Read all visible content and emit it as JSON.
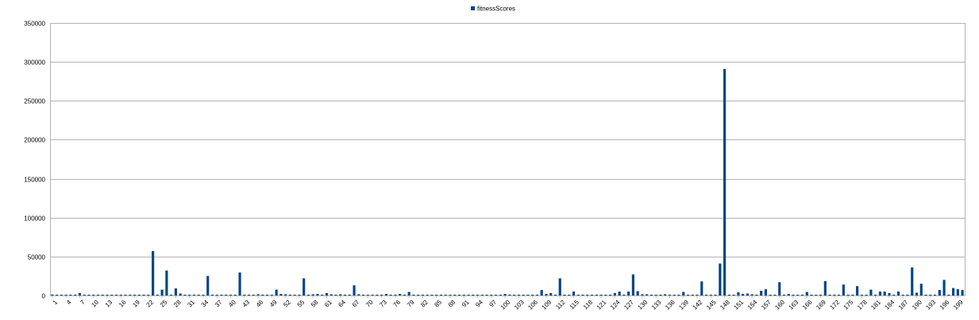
{
  "chart_data": {
    "type": "bar",
    "title": "",
    "xlabel": "",
    "ylabel": "",
    "legend": {
      "position": "top-center",
      "entries": [
        "fitnessScores"
      ]
    },
    "grid": true,
    "ylim": [
      0,
      350000
    ],
    "y_ticks": [
      "0",
      "50000",
      "100000",
      "150000",
      "200000",
      "250000",
      "300000",
      "350000"
    ],
    "x_ticks": [
      "1",
      "4",
      "7",
      "10",
      "13",
      "16",
      "19",
      "22",
      "25",
      "28",
      "31",
      "34",
      "37",
      "40",
      "43",
      "46",
      "49",
      "52",
      "55",
      "58",
      "61",
      "64",
      "67",
      "70",
      "73",
      "76",
      "79",
      "82",
      "85",
      "88",
      "91",
      "94",
      "97",
      "100",
      "103",
      "106",
      "109",
      "112",
      "115",
      "118",
      "121",
      "124",
      "127",
      "130",
      "133",
      "136",
      "139",
      "142",
      "145",
      "148",
      "151",
      "154",
      "157",
      "160",
      "163",
      "166",
      "169",
      "172",
      "175",
      "178",
      "181",
      "184",
      "187",
      "190",
      "193",
      "196",
      "199"
    ],
    "categories_count": 200,
    "series": [
      {
        "name": "fitnessScores",
        "color": "#004586",
        "values": [
          1200,
          1000,
          1000,
          1000,
          1000,
          1000,
          3000,
          1000,
          1000,
          1000,
          1000,
          1000,
          1000,
          1000,
          1000,
          1000,
          1000,
          1000,
          1000,
          1000,
          1000,
          1000,
          57000,
          1000,
          7500,
          32000,
          1000,
          9000,
          2500,
          1000,
          1000,
          1000,
          1000,
          1000,
          25000,
          1000,
          1000,
          1000,
          1000,
          1000,
          1000,
          29500,
          1000,
          1000,
          1000,
          1500,
          1000,
          1000,
          1000,
          7500,
          2000,
          1500,
          1000,
          1000,
          1000,
          22000,
          1000,
          1500,
          2000,
          1000,
          3000,
          1500,
          1000,
          1500,
          1000,
          1000,
          13000,
          1500,
          1000,
          1000,
          1000,
          1000,
          1000,
          2000,
          1000,
          1000,
          2000,
          1000,
          4500,
          1000,
          1000,
          1000,
          1000,
          1000,
          1000,
          1000,
          1000,
          1000,
          1000,
          1000,
          1000,
          1000,
          1000,
          1000,
          1000,
          1000,
          1000,
          1000,
          1000,
          2000,
          1000,
          1000,
          1000,
          1000,
          1000,
          1000,
          1000,
          7000,
          2000,
          3000,
          1000,
          22000,
          1000,
          1000,
          5000,
          1000,
          1000,
          1000,
          1000,
          1000,
          1000,
          1000,
          1000,
          3000,
          5000,
          1000,
          5000,
          27000,
          5500,
          1500,
          1500,
          1000,
          1000,
          1000,
          1500,
          1000,
          1000,
          1000,
          4500,
          1000,
          1000,
          1000,
          18000,
          1000,
          1000,
          1000,
          41000,
          291000,
          1000,
          1000,
          4000,
          2000,
          2500,
          1500,
          1000,
          6000,
          8000,
          1000,
          1000,
          17000,
          1000,
          2000,
          1000,
          1000,
          1000,
          4500,
          1000,
          1000,
          1000,
          18500,
          1000,
          1000,
          1000,
          14000,
          1000,
          1000,
          12000,
          1000,
          1000,
          7500,
          1000,
          5000,
          5000,
          3000,
          1000,
          5000,
          1000,
          1000,
          36000,
          3500,
          15000,
          1000,
          1000,
          1000,
          7000,
          20000,
          1000,
          9500,
          8000,
          7000
        ]
      }
    ]
  }
}
